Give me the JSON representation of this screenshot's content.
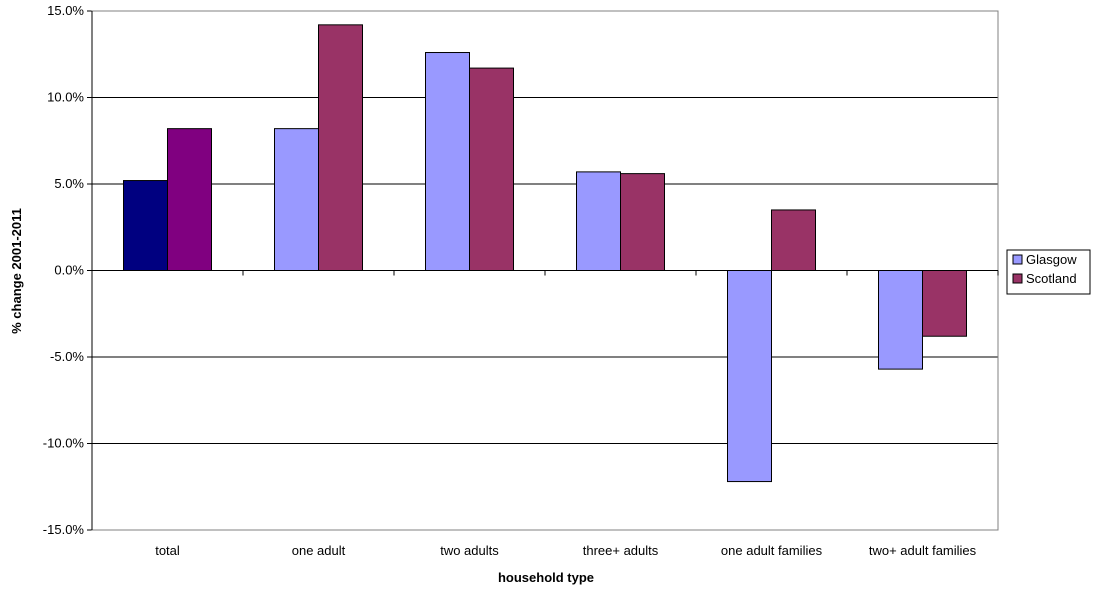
{
  "chart_data": {
    "type": "bar",
    "title": "",
    "xlabel": "household type",
    "ylabel": "% change 2001-2011",
    "ylim": [
      -15,
      15
    ],
    "y_ticks": [
      15,
      10,
      5,
      0,
      -5,
      -10,
      -15
    ],
    "y_tick_labels": [
      "15.0%",
      "10.0%",
      "5.0%",
      "0.0%",
      "-5.0%",
      "-10.0%",
      "-15.0%"
    ],
    "grid": true,
    "legend_position": "right",
    "categories": [
      "total",
      "one adult",
      "two adults",
      "three+ adults",
      "one adult families",
      "two+ adult families"
    ],
    "series": [
      {
        "name": "Glasgow",
        "color": "#9999FF",
        "values": [
          5.2,
          8.2,
          12.6,
          5.7,
          -12.2,
          -5.7
        ],
        "point_colors": [
          "#000080",
          null,
          null,
          null,
          null,
          null
        ]
      },
      {
        "name": "Scotland",
        "color": "#993366",
        "values": [
          8.2,
          14.2,
          11.7,
          5.6,
          3.5,
          -3.8
        ],
        "point_colors": [
          "#800080",
          null,
          null,
          null,
          null,
          null
        ]
      }
    ]
  }
}
